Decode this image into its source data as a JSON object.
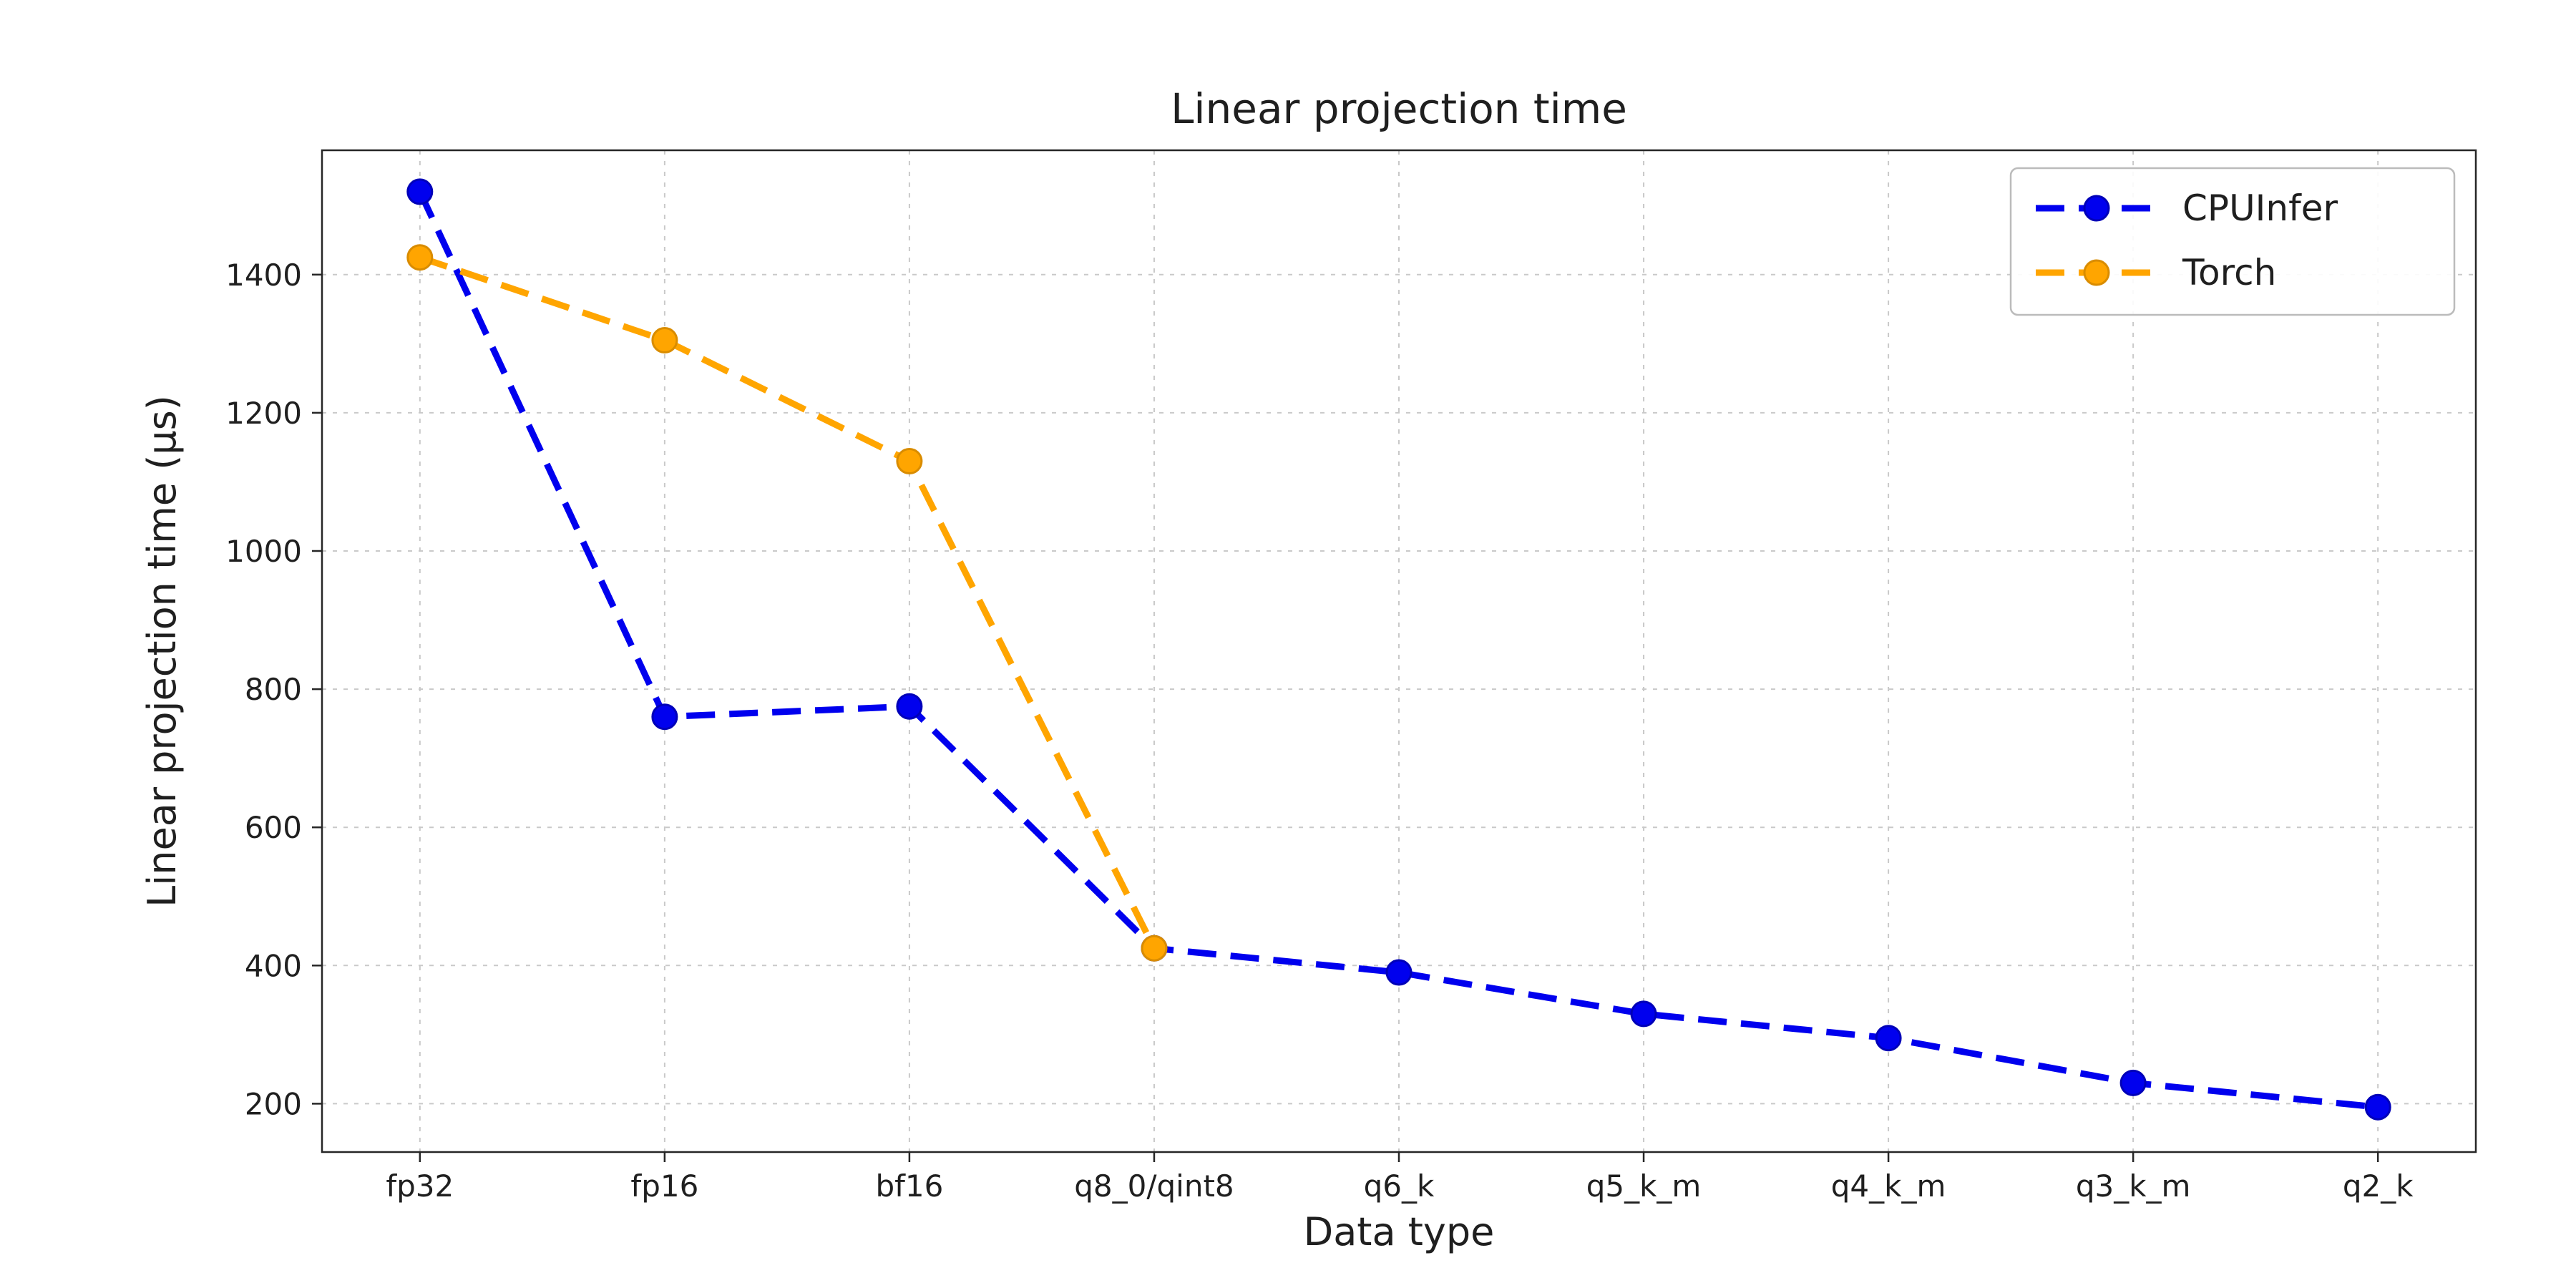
{
  "page": {
    "background": "#ffffff"
  },
  "chart_data": {
    "type": "line",
    "title": "Linear projection time",
    "xlabel": "Data type",
    "ylabel": "Linear projection time (µs)",
    "categories": [
      "fp32",
      "fp16",
      "bf16",
      "q8_0/qint8",
      "q6_k",
      "q5_k_m",
      "q4_k_m",
      "q3_k_m",
      "q2_k"
    ],
    "series": [
      {
        "name": "CPUInfer",
        "color": "#0000ee",
        "edge_color": "#0000b8",
        "line_style": "dashed",
        "marker": "circle",
        "values": [
          1520,
          760,
          775,
          425,
          390,
          330,
          295,
          230,
          195
        ]
      },
      {
        "name": "Torch",
        "color": "#ffa500",
        "edge_color": "#d98c00",
        "line_style": "dashed",
        "marker": "circle",
        "values": [
          1425,
          1305,
          1130,
          425
        ]
      }
    ],
    "yticks": [
      200,
      400,
      600,
      800,
      1000,
      1200,
      1400
    ],
    "ylim": [
      130,
      1580
    ],
    "grid": true,
    "grid_color": "#c9c9c9",
    "axis_color": "#262626",
    "text_color": "#1f1f1f",
    "legend": {
      "position": "upper right",
      "labels": [
        "CPUInfer",
        "Torch"
      ]
    }
  }
}
